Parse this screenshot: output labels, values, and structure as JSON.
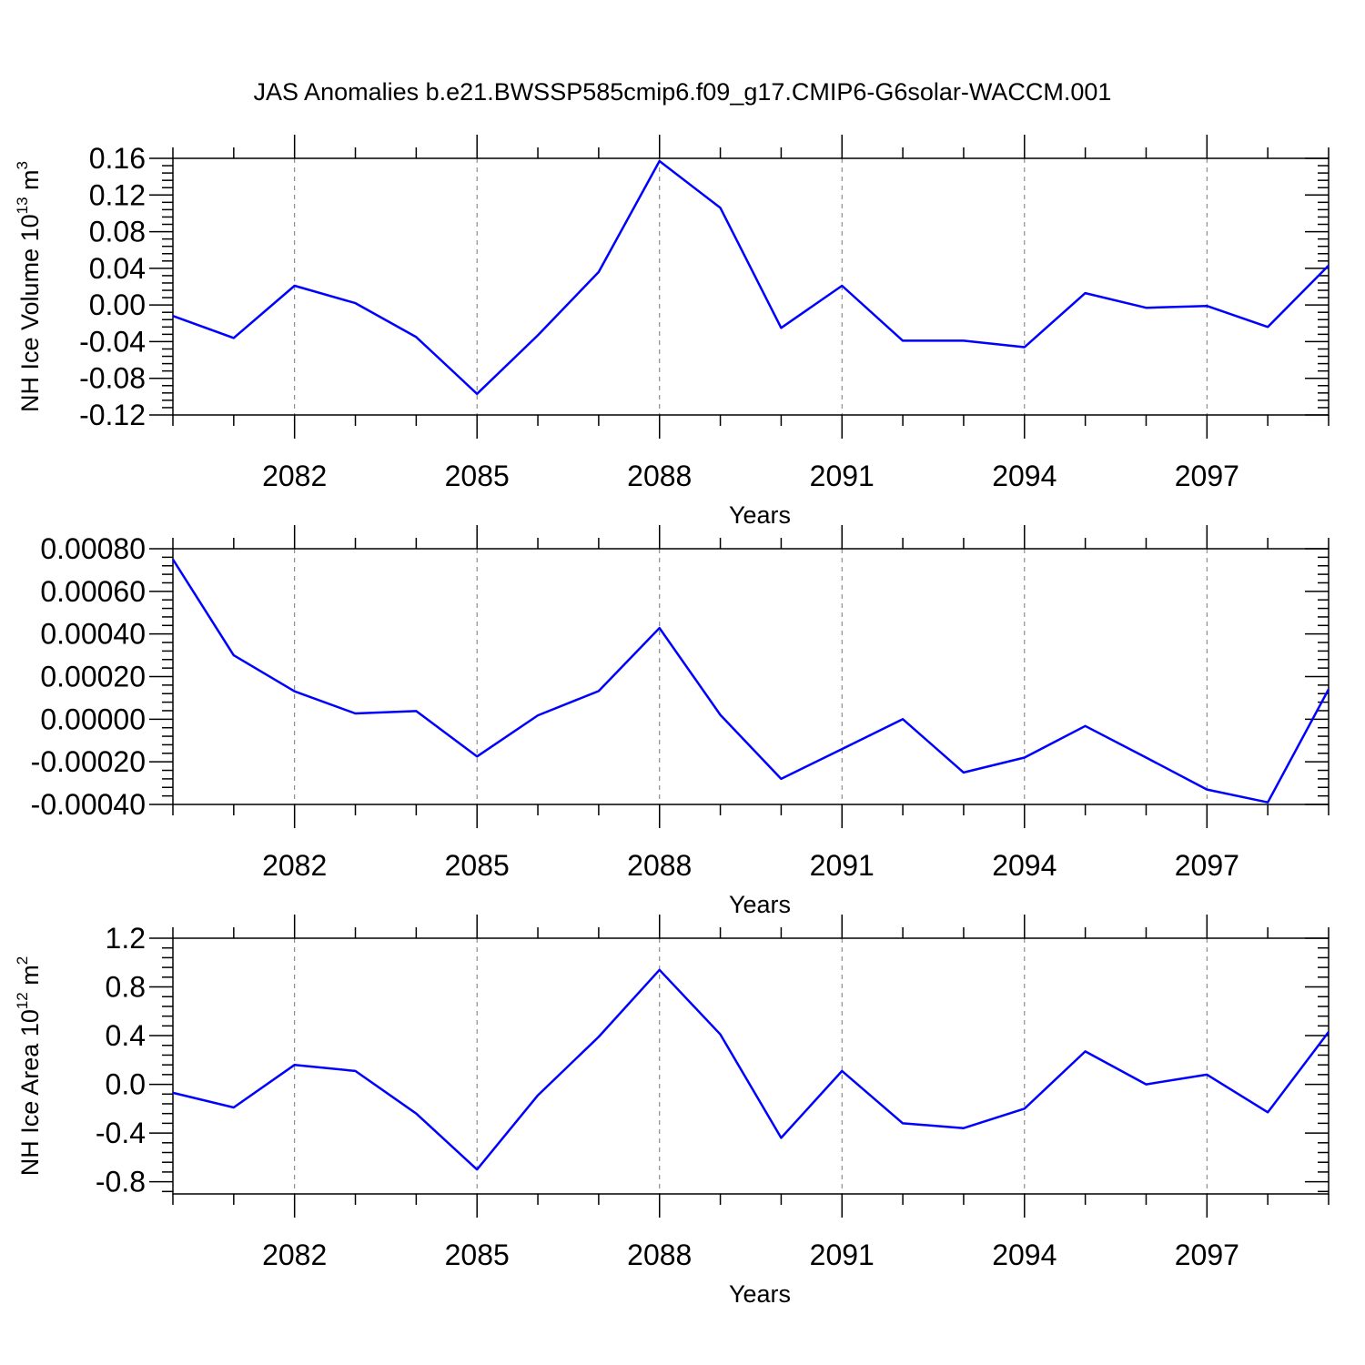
{
  "title": "JAS Anomalies b.e21.BWSSP585cmip6.f09_g17.CMIP6-G6solar-WACCM.001",
  "colors": {
    "line": "#0000ff",
    "axis": "#000000",
    "grid": "#777777"
  },
  "chart_data": [
    {
      "type": "line",
      "ylabel": {
        "main": "NH Ice Volume 10",
        "exp": "13",
        "unit": " m",
        "unit_exp": "3"
      },
      "xlabel": "Years",
      "xlim": [
        2080,
        2099
      ],
      "xticks": [
        2082,
        2085,
        2088,
        2091,
        2094,
        2097
      ],
      "xtick_labels": [
        "2082",
        "2085",
        "2088",
        "2091",
        "2094",
        "2097"
      ],
      "ylim": [
        -0.12,
        0.16
      ],
      "yticks": [
        -0.12,
        -0.08,
        -0.04,
        0.0,
        0.04,
        0.08,
        0.12,
        0.16
      ],
      "ytick_labels": [
        "-0.12",
        "-0.08",
        "-0.04",
        "0.00",
        "0.04",
        "0.08",
        "0.12",
        "0.16"
      ],
      "grid": "vertical dashed at labeled years",
      "series": [
        {
          "x": [
            2080,
            2081,
            2082,
            2083,
            2084,
            2085,
            2086,
            2087,
            2088,
            2089,
            2090,
            2091,
            2092,
            2093,
            2094,
            2095,
            2096,
            2097,
            2098,
            2099
          ],
          "values": [
            -0.012,
            -0.036,
            0.021,
            0.002,
            -0.035,
            -0.097,
            -0.033,
            0.036,
            0.157,
            0.106,
            -0.025,
            0.021,
            -0.039,
            -0.039,
            -0.046,
            0.013,
            -0.003,
            -0.001,
            -0.024,
            0.043
          ]
        }
      ]
    },
    {
      "type": "line",
      "ylabel": null,
      "xlabel": "Years",
      "xlim": [
        2080,
        2099
      ],
      "xticks": [
        2082,
        2085,
        2088,
        2091,
        2094,
        2097
      ],
      "xtick_labels": [
        "2082",
        "2085",
        "2088",
        "2091",
        "2094",
        "2097"
      ],
      "ylim": [
        -0.0004,
        0.0008
      ],
      "yticks": [
        -0.0004,
        -0.0002,
        0.0,
        0.0002,
        0.0004,
        0.0006,
        0.0008
      ],
      "ytick_labels": [
        "-0.00040",
        "-0.00020",
        "0.00000",
        "0.00020",
        "0.00040",
        "0.00060",
        "0.00080"
      ],
      "grid": "vertical dashed at labeled years",
      "series": [
        {
          "x": [
            2080,
            2081,
            2082,
            2083,
            2084,
            2085,
            2086,
            2087,
            2088,
            2089,
            2090,
            2091,
            2092,
            2093,
            2094,
            2095,
            2096,
            2097,
            2098,
            2099
          ],
          "values": [
            0.00075,
            0.0003,
            0.000131,
            2.7e-05,
            3.8e-05,
            -0.000175,
            1.8e-05,
            0.000132,
            0.000428,
            2e-05,
            -0.00028,
            -0.00014,
            0.0,
            -0.00025,
            -0.00018,
            -3.2e-05,
            -0.00018,
            -0.00033,
            -0.00039,
            0.00014
          ]
        }
      ]
    },
    {
      "type": "line",
      "ylabel": {
        "main": "NH Ice Area 10",
        "exp": "12",
        "unit": " m",
        "unit_exp": "2"
      },
      "xlabel": "Years",
      "xlim": [
        2080,
        2099
      ],
      "xticks": [
        2082,
        2085,
        2088,
        2091,
        2094,
        2097
      ],
      "xtick_labels": [
        "2082",
        "2085",
        "2088",
        "2091",
        "2094",
        "2097"
      ],
      "ylim": [
        -0.9,
        1.2
      ],
      "yticks": [
        -0.8,
        -0.4,
        0.0,
        0.4,
        0.8,
        1.2
      ],
      "ytick_labels": [
        "-0.8",
        "-0.4",
        "0.0",
        "0.4",
        "0.8",
        "1.2"
      ],
      "grid": "vertical dashed at labeled years",
      "series": [
        {
          "x": [
            2080,
            2081,
            2082,
            2083,
            2084,
            2085,
            2086,
            2087,
            2088,
            2089,
            2090,
            2091,
            2092,
            2093,
            2094,
            2095,
            2096,
            2097,
            2098,
            2099
          ],
          "values": [
            -0.07,
            -0.19,
            0.16,
            0.11,
            -0.24,
            -0.7,
            -0.09,
            0.39,
            0.94,
            0.41,
            -0.44,
            0.11,
            -0.32,
            -0.36,
            -0.2,
            0.27,
            0.0,
            0.08,
            -0.23,
            0.43
          ]
        }
      ]
    }
  ]
}
